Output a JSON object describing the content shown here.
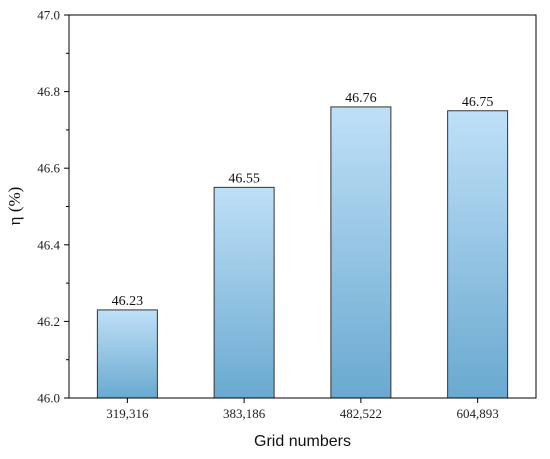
{
  "chart_data": {
    "type": "bar",
    "categories": [
      "319,316",
      "383,186",
      "482,522",
      "604,893"
    ],
    "values": [
      46.23,
      46.55,
      46.76,
      46.75
    ],
    "data_labels": [
      "46.23",
      "46.55",
      "46.76",
      "46.75"
    ],
    "xlabel": "Grid numbers",
    "ylabel": "η (%)",
    "ylim": [
      46.0,
      47.0
    ],
    "yticks": [
      "46.0",
      "46.2",
      "46.4",
      "46.6",
      "46.8",
      "47.0"
    ],
    "ytick_values": [
      46.0,
      46.2,
      46.4,
      46.6,
      46.8,
      47.0
    ],
    "grid": false,
    "colors": {
      "bar_top": "#bfe0f7",
      "bar_bottom": "#6aa9d0",
      "bar_stroke": "#333333",
      "axis": "#000000"
    }
  }
}
